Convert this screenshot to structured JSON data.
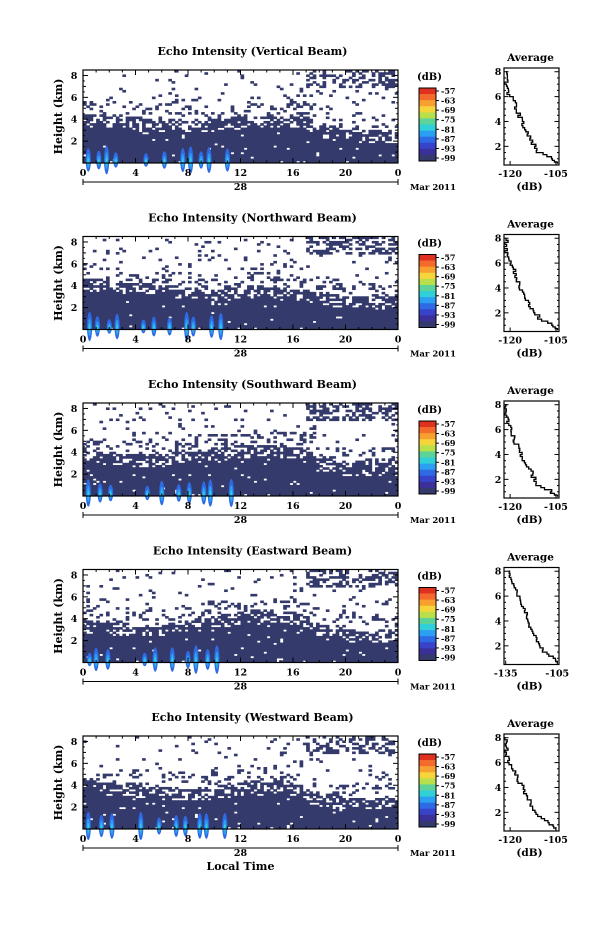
{
  "figure": {
    "shared_xlabel": "Local Time"
  },
  "colorbar": {
    "unit": "(dB)",
    "ticks": [
      "-57",
      "-63",
      "-69",
      "-75",
      "-81",
      "-87",
      "-93",
      "-99"
    ],
    "colors": [
      "#e03020",
      "#f46a2a",
      "#f7a030",
      "#f5d53a",
      "#b9e04a",
      "#5dd39a",
      "#2fd0d8",
      "#2b9ff2",
      "#2d6ae4",
      "#3743c8",
      "#3b2f9a",
      "#343a6b"
    ]
  },
  "chart_data": [
    {
      "type": "heatmap",
      "title": "Echo Intensity (Vertical Beam)",
      "ylabel": "Height (km)",
      "xticks": [
        "0",
        "4",
        "8",
        "12",
        "16",
        "20",
        "0"
      ],
      "date_tick": "28",
      "month_label": "Mar 2011",
      "xlim": [
        0,
        24
      ],
      "ylim": [
        0,
        8.5
      ],
      "yticks": [
        "2",
        "4",
        "6",
        "8"
      ],
      "echo_top_km": [
        4.2,
        4.2,
        4.1,
        4.1,
        4.0,
        3.9,
        3.8,
        3.8,
        3.7,
        3.7,
        3.8,
        3.9,
        4.0,
        4.1,
        4.1,
        4.1,
        4.1,
        4.1,
        3.2,
        3.0,
        2.9,
        2.8,
        2.8,
        2.8,
        2.8
      ],
      "strong_echo_times_h": [
        0.4,
        1.2,
        1.8,
        2.5,
        4.8,
        6.2,
        7.6,
        8.2,
        9.0,
        9.6,
        11.0
      ],
      "profile": {
        "title": "Average",
        "xlabel": "(dB)",
        "xticks": [
          "-120",
          "-105"
        ],
        "xlim": [
          -122,
          -104
        ],
        "yticks": [
          "2",
          "4",
          "6",
          "8"
        ],
        "ylim": [
          0.5,
          8.3
        ],
        "height_km": [
          0.6,
          1.0,
          1.5,
          2.0,
          2.5,
          3.0,
          3.5,
          4.0,
          4.5,
          5.0,
          5.5,
          6.0,
          6.5,
          7.0,
          7.5,
          8.0
        ],
        "value_db": [
          -104.5,
          -106.5,
          -111.0,
          -111.8,
          -113.5,
          -114.2,
          -115.8,
          -116.3,
          -117.0,
          -118.0,
          -118.5,
          -120.2,
          -120.8,
          -121.3,
          -121.0,
          -121.5
        ]
      }
    },
    {
      "type": "heatmap",
      "title": "Echo Intensity (Northward Beam)",
      "ylabel": "Height (km)",
      "xticks": [
        "0",
        "4",
        "8",
        "12",
        "16",
        "20",
        "0"
      ],
      "date_tick": "28",
      "month_label": "Mar 2011",
      "xlim": [
        0,
        24
      ],
      "ylim": [
        0,
        8.5
      ],
      "yticks": [
        "2",
        "4",
        "6",
        "8"
      ],
      "echo_top_km": [
        4.5,
        4.4,
        4.3,
        4.2,
        4.1,
        4.0,
        3.9,
        3.8,
        3.6,
        3.5,
        3.5,
        3.6,
        3.7,
        3.8,
        3.7,
        3.6,
        3.5,
        3.4,
        3.2,
        3.0,
        2.9,
        2.9,
        2.8,
        2.8,
        2.8
      ],
      "strong_echo_times_h": [
        0.5,
        1.1,
        2.0,
        2.6,
        4.6,
        5.4,
        6.6,
        7.9,
        8.4,
        9.8,
        10.5
      ],
      "profile": {
        "title": "Average",
        "xlabel": "(dB)",
        "xticks": [
          "-120",
          "-105"
        ],
        "xlim": [
          -122,
          -104
        ],
        "yticks": [
          "2",
          "4",
          "6",
          "8"
        ],
        "ylim": [
          0.5,
          8.3
        ],
        "height_km": [
          0.6,
          1.0,
          1.5,
          2.0,
          2.5,
          3.0,
          3.5,
          4.0,
          4.5,
          5.0,
          5.5,
          6.0,
          6.5,
          7.0,
          7.5,
          8.0
        ],
        "value_db": [
          -104.5,
          -106.0,
          -110.5,
          -112.0,
          -113.5,
          -115.0,
          -115.5,
          -116.8,
          -117.5,
          -118.2,
          -119.0,
          -120.0,
          -121.0,
          -121.4,
          -121.2,
          -121.6
        ]
      }
    },
    {
      "type": "heatmap",
      "title": "Echo Intensity (Southward Beam)",
      "ylabel": "Height (km)",
      "xticks": [
        "0",
        "4",
        "8",
        "12",
        "16",
        "20",
        "0"
      ],
      "date_tick": "28",
      "month_label": "Mar 2011",
      "xlim": [
        0,
        24
      ],
      "ylim": [
        0,
        8.5
      ],
      "yticks": [
        "2",
        "4",
        "6",
        "8"
      ],
      "echo_top_km": [
        3.9,
        3.9,
        3.8,
        3.7,
        3.6,
        3.6,
        3.6,
        3.8,
        4.0,
        4.1,
        4.2,
        4.3,
        4.4,
        4.5,
        4.5,
        4.4,
        4.3,
        4.1,
        3.4,
        2.9,
        2.8,
        2.8,
        2.8,
        2.8,
        2.8
      ],
      "strong_echo_times_h": [
        0.4,
        1.3,
        2.1,
        4.9,
        6.0,
        7.3,
        8.1,
        9.2,
        9.7,
        11.3
      ],
      "profile": {
        "title": "Average",
        "xlabel": "(dB)",
        "xticks": [
          "-120",
          "-105"
        ],
        "xlim": [
          -122,
          -104
        ],
        "yticks": [
          "2",
          "4",
          "6",
          "8"
        ],
        "ylim": [
          0.5,
          8.3
        ],
        "height_km": [
          0.6,
          1.0,
          1.5,
          2.0,
          2.5,
          3.0,
          3.5,
          4.0,
          4.5,
          5.0,
          5.5,
          6.0,
          6.5,
          7.0,
          7.5,
          8.0
        ],
        "value_db": [
          -104.5,
          -107.0,
          -111.0,
          -112.2,
          -113.0,
          -114.5,
          -116.0,
          -116.5,
          -117.2,
          -118.5,
          -119.5,
          -120.1,
          -121.0,
          -121.2,
          -121.5,
          -121.4
        ]
      }
    },
    {
      "type": "heatmap",
      "title": "Echo Intensity (Eastward Beam)",
      "ylabel": "Height (km)",
      "xticks": [
        "0",
        "4",
        "8",
        "12",
        "16",
        "20",
        "0"
      ],
      "date_tick": "28",
      "month_label": "Mar 2011",
      "xlim": [
        0,
        24
      ],
      "ylim": [
        0,
        8.5
      ],
      "yticks": [
        "2",
        "4",
        "6",
        "8"
      ],
      "echo_top_km": [
        3.6,
        3.6,
        3.5,
        3.4,
        3.3,
        3.3,
        3.4,
        3.5,
        3.7,
        3.8,
        4.0,
        4.2,
        4.4,
        4.6,
        4.6,
        4.5,
        4.4,
        4.1,
        3.3,
        2.8,
        2.8,
        2.7,
        2.7,
        2.7,
        2.7
      ],
      "strong_echo_times_h": [
        0.5,
        1.0,
        1.9,
        4.7,
        5.5,
        6.8,
        8.0,
        8.6,
        9.5,
        10.2
      ],
      "profile": {
        "title": "Average",
        "xlabel": "(dB)",
        "xticks": [
          "-135",
          "-105"
        ],
        "xlim": [
          -136,
          -104
        ],
        "yticks": [
          "2",
          "4",
          "6",
          "8"
        ],
        "ylim": [
          0.5,
          8.3
        ],
        "height_km": [
          0.6,
          1.0,
          1.5,
          2.0,
          2.5,
          3.0,
          3.5,
          4.0,
          4.5,
          5.0,
          5.5,
          6.0,
          6.5,
          7.0,
          7.5,
          8.0
        ],
        "value_db": [
          -105.0,
          -107.5,
          -113.0,
          -115.5,
          -117.0,
          -119.0,
          -121.5,
          -122.0,
          -123.0,
          -125.0,
          -126.0,
          -128.0,
          -129.0,
          -131.0,
          -132.5,
          -133.0
        ]
      }
    },
    {
      "type": "heatmap",
      "title": "Echo Intensity (Westward Beam)",
      "ylabel": "Height (km)",
      "xticks": [
        "0",
        "4",
        "8",
        "12",
        "16",
        "20",
        "0"
      ],
      "date_tick": "28",
      "month_label": "Mar 2011",
      "xlabel": "Local Time",
      "xlim": [
        0,
        24
      ],
      "ylim": [
        0,
        8.5
      ],
      "yticks": [
        "2",
        "4",
        "6",
        "8"
      ],
      "echo_top_km": [
        4.3,
        4.2,
        4.0,
        3.9,
        3.8,
        3.7,
        3.6,
        3.6,
        3.5,
        3.5,
        3.6,
        3.8,
        4.0,
        4.2,
        4.3,
        4.2,
        4.0,
        3.6,
        3.0,
        2.8,
        2.7,
        2.7,
        2.7,
        2.7,
        2.7
      ],
      "strong_echo_times_h": [
        0.4,
        1.4,
        2.2,
        4.4,
        5.8,
        7.1,
        7.8,
        8.9,
        9.4,
        10.8
      ],
      "profile": {
        "title": "Average",
        "xlabel": "(dB)",
        "xticks": [
          "-120",
          "-105"
        ],
        "xlim": [
          -122,
          -104
        ],
        "yticks": [
          "2",
          "4",
          "6",
          "8"
        ],
        "ylim": [
          0.5,
          8.3
        ],
        "height_km": [
          0.6,
          1.0,
          1.5,
          2.0,
          2.5,
          3.0,
          3.5,
          4.0,
          4.5,
          5.0,
          5.5,
          6.0,
          6.5,
          7.0,
          7.5,
          8.0
        ],
        "value_db": [
          -105.0,
          -107.0,
          -110.5,
          -111.5,
          -113.2,
          -114.0,
          -115.5,
          -116.0,
          -117.5,
          -118.0,
          -119.0,
          -120.5,
          -121.0,
          -121.3,
          -121.6,
          -121.4
        ]
      }
    }
  ]
}
